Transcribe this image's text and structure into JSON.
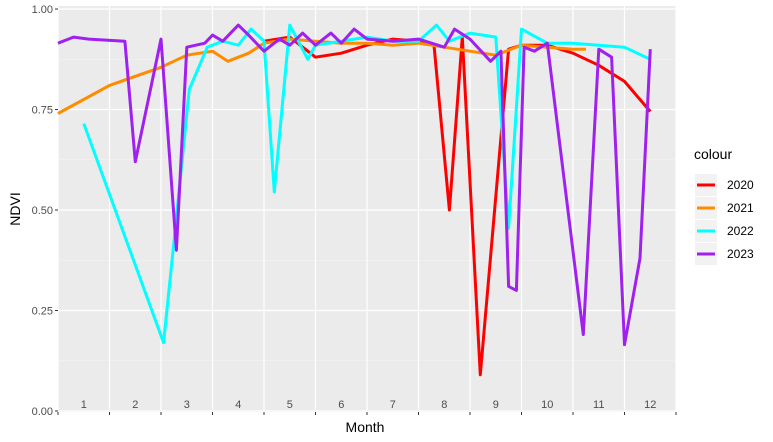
{
  "chart_data": {
    "type": "line",
    "title": "",
    "xlabel": "Month",
    "ylabel": "NDVI",
    "xlim": [
      1,
      13
    ],
    "ylim": [
      0,
      1
    ],
    "y_ticks": [
      0.0,
      0.25,
      0.5,
      0.75,
      1.0
    ],
    "y_tick_labels": [
      "0.00",
      "0.25",
      "0.50",
      "0.75",
      "1.00"
    ],
    "x_categories": [
      "1",
      "2",
      "3",
      "4",
      "5",
      "6",
      "7",
      "8",
      "9",
      "10",
      "11",
      "12"
    ],
    "grid": true,
    "legend": {
      "title": "colour",
      "position": "right"
    },
    "series": [
      {
        "name": "2020",
        "color": "#ff0000",
        "x": [
          5.0,
          5.5,
          6.0,
          6.5,
          7.0,
          7.5,
          8.0,
          8.3,
          8.6,
          8.85,
          9.2,
          9.75,
          10.0,
          10.5,
          11.0,
          11.5,
          12.0,
          12.5
        ],
        "y": [
          0.92,
          0.93,
          0.88,
          0.89,
          0.91,
          0.925,
          0.92,
          0.91,
          0.5,
          0.93,
          0.09,
          0.9,
          0.91,
          0.91,
          0.89,
          0.86,
          0.82,
          0.745
        ]
      },
      {
        "name": "2021",
        "color": "#ff8c00",
        "x": [
          1.0,
          2.0,
          3.0,
          3.5,
          4.0,
          4.3,
          4.7,
          5.0,
          5.5,
          6.0,
          6.5,
          7.0,
          7.5,
          8.0,
          8.5,
          9.0,
          9.5,
          10.0,
          10.5,
          11.0,
          11.25
        ],
        "y": [
          0.74,
          0.81,
          0.855,
          0.885,
          0.895,
          0.87,
          0.89,
          0.915,
          0.925,
          0.92,
          0.915,
          0.915,
          0.91,
          0.915,
          0.905,
          0.895,
          0.885,
          0.91,
          0.905,
          0.9,
          0.9
        ]
      },
      {
        "name": "2022",
        "color": "#00ffff",
        "x": [
          1.5,
          3.05,
          3.25,
          3.55,
          3.9,
          4.2,
          4.5,
          4.75,
          5.0,
          5.2,
          5.5,
          5.85,
          6.0,
          6.5,
          7.0,
          7.5,
          8.0,
          8.35,
          8.6,
          9.0,
          9.5,
          9.75,
          10.0,
          10.5,
          11.0,
          11.5,
          12.0,
          12.5
        ],
        "y": [
          0.715,
          0.17,
          0.42,
          0.8,
          0.905,
          0.92,
          0.91,
          0.95,
          0.92,
          0.545,
          0.96,
          0.875,
          0.91,
          0.92,
          0.93,
          0.92,
          0.92,
          0.96,
          0.92,
          0.94,
          0.93,
          0.455,
          0.95,
          0.915,
          0.915,
          0.91,
          0.905,
          0.875
        ]
      },
      {
        "name": "2023",
        "color": "#a020f0",
        "x": [
          1.0,
          1.3,
          1.6,
          2.3,
          2.5,
          3.0,
          3.3,
          3.5,
          3.85,
          4.0,
          4.2,
          4.5,
          4.7,
          5.0,
          5.3,
          5.5,
          5.75,
          6.0,
          6.3,
          6.5,
          6.75,
          7.0,
          7.5,
          8.0,
          8.5,
          8.7,
          9.0,
          9.4,
          9.6,
          9.75,
          9.9,
          10.05,
          10.25,
          10.5,
          11.2,
          11.5,
          11.75,
          12.0,
          12.3,
          12.5
        ],
        "y": [
          0.915,
          0.93,
          0.925,
          0.92,
          0.62,
          0.925,
          0.4,
          0.905,
          0.915,
          0.935,
          0.92,
          0.96,
          0.935,
          0.895,
          0.925,
          0.91,
          0.94,
          0.91,
          0.94,
          0.915,
          0.95,
          0.925,
          0.92,
          0.925,
          0.905,
          0.95,
          0.925,
          0.87,
          0.895,
          0.31,
          0.3,
          0.905,
          0.895,
          0.915,
          0.19,
          0.9,
          0.88,
          0.165,
          0.38,
          0.9
        ]
      }
    ]
  }
}
